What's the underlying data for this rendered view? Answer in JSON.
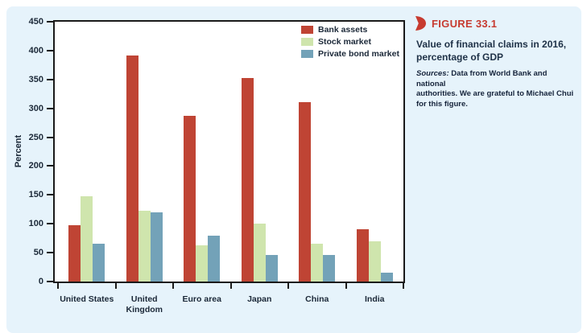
{
  "panel": {
    "background": "#e6f3fb"
  },
  "side": {
    "figure_label": "FIGURE 33.1",
    "accent_color": "#c73b30",
    "caption_lines": [
      "Value of financial claims in 2016,",
      "percentage of GDP"
    ],
    "sources_prefix": "Sources:",
    "sources_lines": [
      " Data from World Bank and national",
      "authorities. We are grateful to Michael Chui",
      "for this figure."
    ]
  },
  "chart_data": {
    "type": "bar",
    "title": "",
    "xlabel": "",
    "ylabel": "Percent",
    "ylim": [
      0,
      450
    ],
    "ytick_step": 50,
    "grid": false,
    "legend_position": "top-right-inside",
    "plot_background": "#ffffff",
    "axis_color": "#1a1a1a",
    "categories": [
      "United States",
      "United Kingdom",
      "Euro area",
      "Japan",
      "China",
      "India"
    ],
    "series": [
      {
        "name": "Bank assets",
        "color": "#bf4434",
        "values": [
          98,
          392,
          287,
          353,
          310,
          90
        ]
      },
      {
        "name": "Stock market",
        "color": "#cfe5ad",
        "values": [
          147,
          123,
          63,
          100,
          65,
          69
        ]
      },
      {
        "name": "Private bond market",
        "color": "#73a2b8",
        "values": [
          65,
          120,
          80,
          46,
          46,
          15
        ]
      }
    ]
  }
}
